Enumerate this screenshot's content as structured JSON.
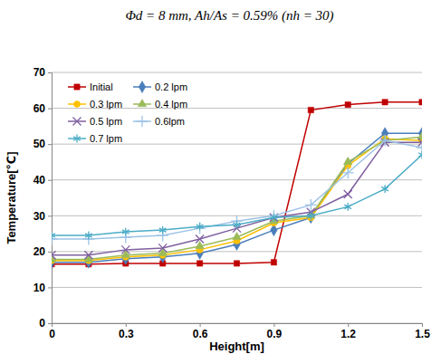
{
  "chart_data": {
    "type": "line",
    "title": "Φd = 8 mm, Ah/As = 0.59% (nh = 30)",
    "x_label": "Height[m]",
    "y_label": "Temperature[℃]",
    "x": [
      0,
      0.15,
      0.3,
      0.45,
      0.6,
      0.75,
      0.9,
      1.05,
      1.2,
      1.35,
      1.5
    ],
    "xlim": [
      0,
      1.5
    ],
    "xticks": [
      0,
      0.3,
      0.6,
      0.9,
      1.2,
      1.5
    ],
    "ylim": [
      0,
      70
    ],
    "yticks": [
      0,
      10,
      20,
      30,
      40,
      50,
      60,
      70
    ],
    "grid": true,
    "legend": "upper left",
    "series": [
      {
        "name": "Initial",
        "color": "#c00000",
        "marker": "square",
        "values": [
          16.5,
          16.5,
          16.7,
          16.7,
          16.7,
          16.7,
          17,
          59.5,
          61,
          61.7,
          61.7
        ]
      },
      {
        "name": "0.2 lpm",
        "color": "#4a7ebb",
        "marker": "diamond",
        "values": [
          17,
          17,
          18,
          18.5,
          19.5,
          22,
          26,
          29.5,
          44.5,
          53,
          53
        ]
      },
      {
        "name": "0.3 lpm",
        "color": "#ffc000",
        "marker": "circle",
        "values": [
          17.5,
          17.5,
          18.5,
          19,
          20.5,
          23,
          28,
          29.5,
          44,
          51.5,
          51
        ]
      },
      {
        "name": "0.4 lpm",
        "color": "#9bbb59",
        "marker": "triangle",
        "values": [
          17.8,
          17.8,
          19,
          19.5,
          21.5,
          24,
          28.5,
          30,
          45,
          51,
          52
        ]
      },
      {
        "name": "0.5 lpm",
        "color": "#7f5f9f",
        "marker": "x",
        "values": [
          19,
          19,
          20.5,
          21,
          23.5,
          26.5,
          29.5,
          31,
          36,
          50.5,
          50.5
        ]
      },
      {
        "name": "0.6lpm",
        "color": "#9dc3e6",
        "marker": "plus",
        "values": [
          23.5,
          23.5,
          24,
          24.5,
          26.5,
          28.5,
          30,
          33,
          42,
          51,
          49
        ]
      },
      {
        "name": "0.7 lpm",
        "color": "#4bacc6",
        "marker": "star",
        "values": [
          24.5,
          24.5,
          25.5,
          26,
          27,
          27.5,
          29.5,
          30,
          32.5,
          37.5,
          47
        ]
      }
    ]
  }
}
